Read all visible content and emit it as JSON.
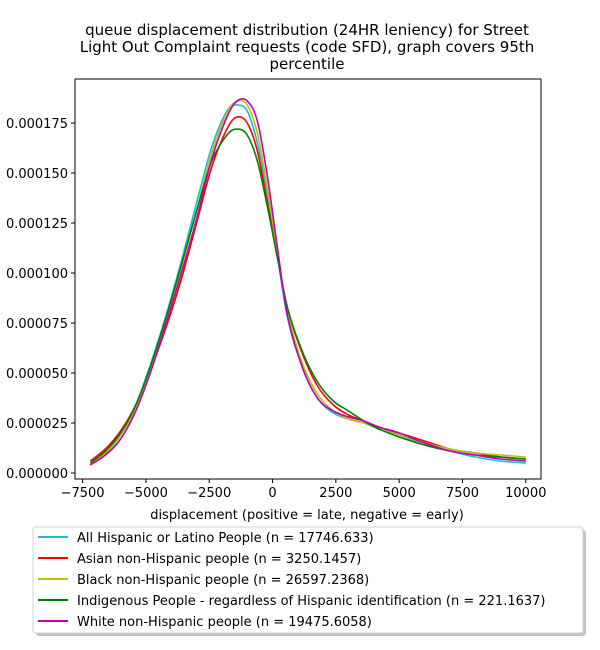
{
  "chart_data": {
    "type": "line",
    "title_lines": [
      "queue displacement distribution (24HR leniency) for Street",
      "Light Out Complaint  requests (code SFD), graph covers 95th",
      "percentile"
    ],
    "xlabel": "displacement (positive = late, negative = early)",
    "ylabel": "",
    "xlim": [
      -7800,
      10600
    ],
    "ylim": [
      -3e-06,
      0.000197
    ],
    "xticks": [
      -7500,
      -5000,
      -2500,
      0,
      2500,
      5000,
      7500,
      10000
    ],
    "xtick_labels": [
      "−7500",
      "−5000",
      "−2500",
      "0",
      "2500",
      "5000",
      "7500",
      "10000"
    ],
    "yticks": [
      0,
      2.5e-05,
      5e-05,
      7.5e-05,
      0.0001,
      0.000125,
      0.00015,
      0.000175
    ],
    "ytick_labels": [
      "0.000000",
      "0.000025",
      "0.000050",
      "0.000075",
      "0.000100",
      "0.000125",
      "0.000150",
      "0.000175"
    ],
    "grid": false,
    "legend_position": "below",
    "x": [
      -7200,
      -6600,
      -6000,
      -5400,
      -4800,
      -4200,
      -3600,
      -3000,
      -2400,
      -1800,
      -1400,
      -1000,
      -600,
      -200,
      200,
      600,
      1200,
      1800,
      2400,
      3000,
      3600,
      4200,
      5000,
      6000,
      7000,
      8000,
      9000,
      10000
    ],
    "series": [
      {
        "name": "All Hispanic or Latino People (n = 17746.633)",
        "color": "#17becf",
        "values": [
          5e-06,
          1e-05,
          1.9e-05,
          3.4e-05,
          5.5e-05,
          7.9e-05,
          0.000106,
          0.000135,
          0.000163,
          0.000181,
          0.000184,
          0.000181,
          0.000165,
          0.000139,
          0.000108,
          7.7e-05,
          5.2e-05,
          3.7e-05,
          3e-05,
          2.7e-05,
          2.5e-05,
          2.3e-05,
          1.9e-05,
          1.4e-05,
          1.1e-05,
          8e-06,
          6e-06,
          5e-06
        ]
      },
      {
        "name": "Asian non-Hispanic people (n = 3250.1457)",
        "color": "#ff0000",
        "values": [
          6e-06,
          1.2e-05,
          2.1e-05,
          3.4e-05,
          5.2e-05,
          7.3e-05,
          9.7e-05,
          0.000125,
          0.000153,
          0.000172,
          0.000178,
          0.000175,
          0.000161,
          0.000135,
          0.000108,
          8.2e-05,
          5.9e-05,
          4.3e-05,
          3.4e-05,
          2.9e-05,
          2.6e-05,
          2.3e-05,
          2e-05,
          1.6e-05,
          1.2e-05,
          1e-05,
          8e-06,
          7e-06
        ]
      },
      {
        "name": "Black non-Hispanic people (n = 26597.2368)",
        "color": "#bfbf00",
        "values": [
          4e-06,
          1e-05,
          1.9e-05,
          3.2e-05,
          5.2e-05,
          7.6e-05,
          0.000103,
          0.000131,
          0.00016,
          0.00018,
          0.000186,
          0.000184,
          0.00017,
          0.000142,
          0.00011,
          8e-05,
          5.4e-05,
          3.9e-05,
          3.1e-05,
          2.7e-05,
          2.5e-05,
          2.2e-05,
          1.9e-05,
          1.5e-05,
          1.2e-05,
          1e-05,
          9e-06,
          8e-06
        ]
      },
      {
        "name": "Indigenous People - regardless of Hispanic identification (n = 221.1637)",
        "color": "#008000",
        "values": [
          5e-06,
          1.1e-05,
          2e-05,
          3.4e-05,
          5.4e-05,
          7.8e-05,
          0.000104,
          0.000131,
          0.000156,
          0.000169,
          0.000172,
          0.000169,
          0.000156,
          0.000133,
          0.000107,
          8.2e-05,
          6e-05,
          4.5e-05,
          3.6e-05,
          3.1e-05,
          2.6e-05,
          2.2e-05,
          1.8e-05,
          1.4e-05,
          1.1e-05,
          9e-06,
          8e-06,
          7e-06
        ]
      },
      {
        "name": "White non-Hispanic people (n = 19475.6058)",
        "color": "#bf00bf",
        "values": [
          4e-06,
          9e-06,
          1.7e-05,
          3.1e-05,
          5.1e-05,
          7.5e-05,
          0.0001,
          0.000127,
          0.000157,
          0.000178,
          0.000186,
          0.000186,
          0.000176,
          0.000148,
          0.000112,
          7.8e-05,
          5.2e-05,
          3.7e-05,
          3.1e-05,
          2.8e-05,
          2.6e-05,
          2.3e-05,
          2e-05,
          1.5e-05,
          1.1e-05,
          9e-06,
          7e-06,
          6e-06
        ]
      }
    ]
  }
}
